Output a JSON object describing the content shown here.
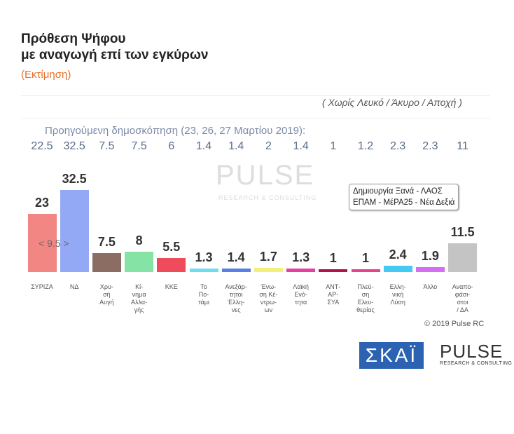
{
  "chart_data": {
    "type": "bar",
    "title": "Πρόθεση Ψήφου\nμε αναγωγή επί των εγκύρων",
    "subtitle": "(Εκτίμηση)",
    "note": "( Χωρίς Λευκό / Άκυρο / Αποχή )",
    "previous_label": "Προηγούμενη δημοσκόπηση (23, 26, 27 Μαρτίου 2019):",
    "categories": [
      "ΣΥΡΙΖΑ",
      "ΝΔ",
      "Χρυ-\nσή\nΑυγή",
      "Κί-\nνημα\nΑλλα-\nγής",
      "ΚΚΕ",
      "Το\nΠο-\nτάμι",
      "Ανεξάρ-\nτητοι\nΈλλη-\nνες",
      "Ένω-\nση Κέ-\nντρω-\nων",
      "Λαϊκή\nΕνό-\nτητα",
      "ΑΝΤ-\nΑΡ-\nΣΥΑ",
      "Πλεύ-\nση\nΕλευ-\nθερίας",
      "Ελλη-\nνική\nΛύση",
      "Άλλο",
      "Αναπο-\nφάσι-\nστοι\n/ ΔΑ"
    ],
    "values": [
      23,
      32.5,
      7.5,
      8,
      5.5,
      1.3,
      1.4,
      1.7,
      1.3,
      1,
      1,
      2.4,
      1.9,
      11.5
    ],
    "previous_values": [
      22.5,
      32.5,
      7.5,
      7.5,
      6,
      1.4,
      1.4,
      2,
      1.4,
      1,
      1.2,
      2.3,
      2.3,
      11
    ],
    "colors": [
      "#f28683",
      "#93a9f6",
      "#8c6d64",
      "#86e3a6",
      "#ee4c5b",
      "#6fdcf0",
      "#5a7fe2",
      "#f3ef7c",
      "#e2419f",
      "#b3124f",
      "#e8428f",
      "#43c9f2",
      "#d46ff2",
      "#c4c4c4"
    ],
    "gap_annotation": "< 9.5 >",
    "callout": "Δημιουργία Ξανά - ΛΑΟΣ\nΕΠΑΜ - ΜέΡΑ25 - Νέα Δεξιά",
    "watermark": "PULSE",
    "watermark_sub": "RESEARCH & CONSULTING",
    "copyright": "© 2019 Pulse RC",
    "logo_skai": "ΣΚΑΪ",
    "logo_pulse": "PULSE",
    "logo_pulse_sub": "RESEARCH & CONSULTING"
  }
}
